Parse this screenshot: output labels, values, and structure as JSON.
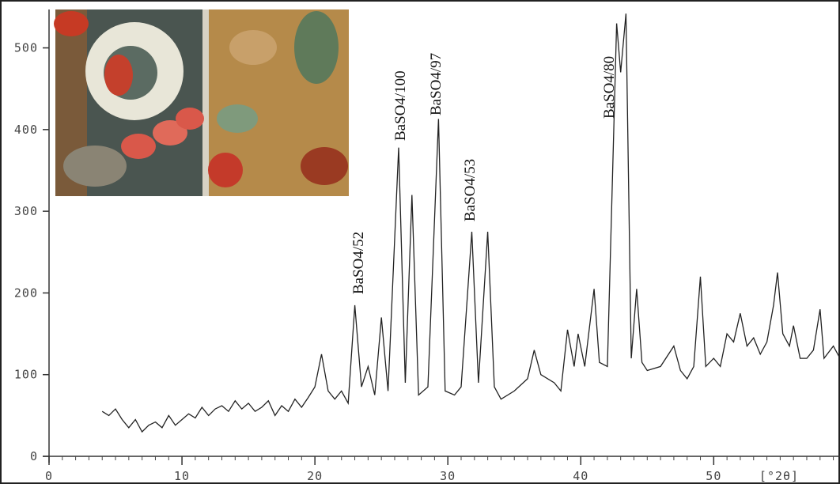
{
  "chart_data": {
    "type": "line",
    "x_label": "[°2θ]",
    "color": "#222222",
    "xlim": [
      0,
      59.5
    ],
    "ylim": [
      0,
      547
    ],
    "xticks": [
      0,
      10,
      20,
      30,
      40,
      50
    ],
    "yticks": [
      0,
      100,
      200,
      300,
      400,
      500
    ],
    "annotations": [
      "BaSO4/52",
      "BaSO4/100",
      "BaSO4/97",
      "BaSO4/53",
      "BaSO4/80"
    ],
    "x": [
      4,
      4.5,
      5,
      5.5,
      6,
      6.5,
      7,
      7.5,
      8,
      8.5,
      9,
      9.5,
      10,
      10.5,
      11,
      11.5,
      12,
      12.5,
      13,
      13.5,
      14,
      14.5,
      15,
      15.5,
      16,
      16.5,
      17,
      17.5,
      18,
      18.5,
      19,
      19.5,
      20,
      20.5,
      21,
      21.5,
      22,
      22.5,
      23,
      23.5,
      24,
      24.5,
      25,
      25.5,
      26.3,
      26.8,
      27.3,
      27.8,
      28.5,
      29.3,
      29.8,
      30.5,
      31,
      31.8,
      32.3,
      33,
      33.5,
      34,
      35,
      36,
      36.5,
      37,
      38,
      38.5,
      39,
      39.5,
      39.8,
      40.3,
      41,
      41.4,
      42,
      42.7,
      43,
      43.4,
      43.8,
      44.2,
      44.6,
      45,
      46,
      47,
      47.5,
      48,
      48.5,
      49,
      49.4,
      50,
      50.5,
      51,
      51.5,
      52,
      52.5,
      53,
      53.5,
      54,
      54.5,
      54.8,
      55.2,
      55.7,
      56,
      56.5,
      57,
      57.5,
      58,
      58.3,
      59,
      59.5
    ],
    "values": [
      55,
      50,
      58,
      45,
      35,
      45,
      30,
      38,
      42,
      35,
      50,
      38,
      45,
      52,
      47,
      60,
      50,
      58,
      62,
      55,
      68,
      58,
      65,
      55,
      60,
      68,
      50,
      62,
      55,
      70,
      60,
      72,
      85,
      125,
      80,
      70,
      80,
      65,
      185,
      85,
      110,
      75,
      170,
      80,
      378,
      90,
      320,
      75,
      85,
      413,
      80,
      75,
      85,
      275,
      90,
      275,
      85,
      70,
      80,
      95,
      130,
      100,
      90,
      80,
      155,
      110,
      150,
      110,
      205,
      115,
      110,
      530,
      470,
      542,
      120,
      205,
      115,
      105,
      110,
      135,
      105,
      95,
      110,
      220,
      110,
      120,
      110,
      150,
      140,
      175,
      135,
      145,
      125,
      140,
      185,
      225,
      150,
      135,
      160,
      120,
      120,
      130,
      180,
      120,
      135,
      120
    ]
  }
}
